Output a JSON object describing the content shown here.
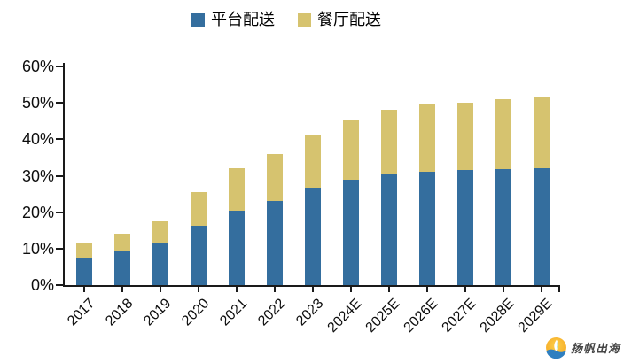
{
  "chart_data": {
    "type": "bar",
    "stacked": true,
    "title": "",
    "xlabel": "",
    "ylabel": "",
    "categories": [
      "2017",
      "2018",
      "2019",
      "2020",
      "2021",
      "2022",
      "2023",
      "2024E",
      "2025E",
      "2026E",
      "2027E",
      "2028E",
      "2029E"
    ],
    "series": [
      {
        "name": "平台配送",
        "color": "#346e9e",
        "values": [
          7.5,
          9.2,
          11.3,
          16.2,
          20.3,
          23.0,
          26.8,
          29.0,
          30.7,
          31.2,
          31.5,
          31.9,
          32.1
        ]
      },
      {
        "name": "餐厅配送",
        "color": "#d6c36f",
        "values": [
          4.0,
          5.0,
          6.2,
          9.3,
          11.7,
          13.0,
          14.5,
          16.5,
          17.3,
          18.3,
          18.5,
          19.1,
          19.4
        ]
      }
    ],
    "totals": [
      11.5,
      14.2,
      17.5,
      25.5,
      32.0,
      36.0,
      41.3,
      45.5,
      48.0,
      49.5,
      50.0,
      51.0,
      51.5
    ],
    "ylim": [
      0,
      60
    ],
    "yticks": [
      {
        "label": "0%",
        "value": 0
      },
      {
        "label": "10%",
        "value": 10
      },
      {
        "label": "20%",
        "value": 20
      },
      {
        "label": "30%",
        "value": 30
      },
      {
        "label": "40%",
        "value": 40
      },
      {
        "label": "50%",
        "value": 50
      },
      {
        "label": "60%",
        "value": 60
      }
    ],
    "legend_position": "top",
    "grid": false,
    "axis_color": "#1a1a1a"
  },
  "watermark": {
    "text": "扬帆出海",
    "icon": "sailboat-logo-icon",
    "icon_colors": {
      "circle_outer": "#f7a823",
      "circle_inner": "#fbd04a",
      "sail": "#ffffff",
      "leaf": "#5cb85c",
      "wave": "#2e7fc0"
    }
  }
}
